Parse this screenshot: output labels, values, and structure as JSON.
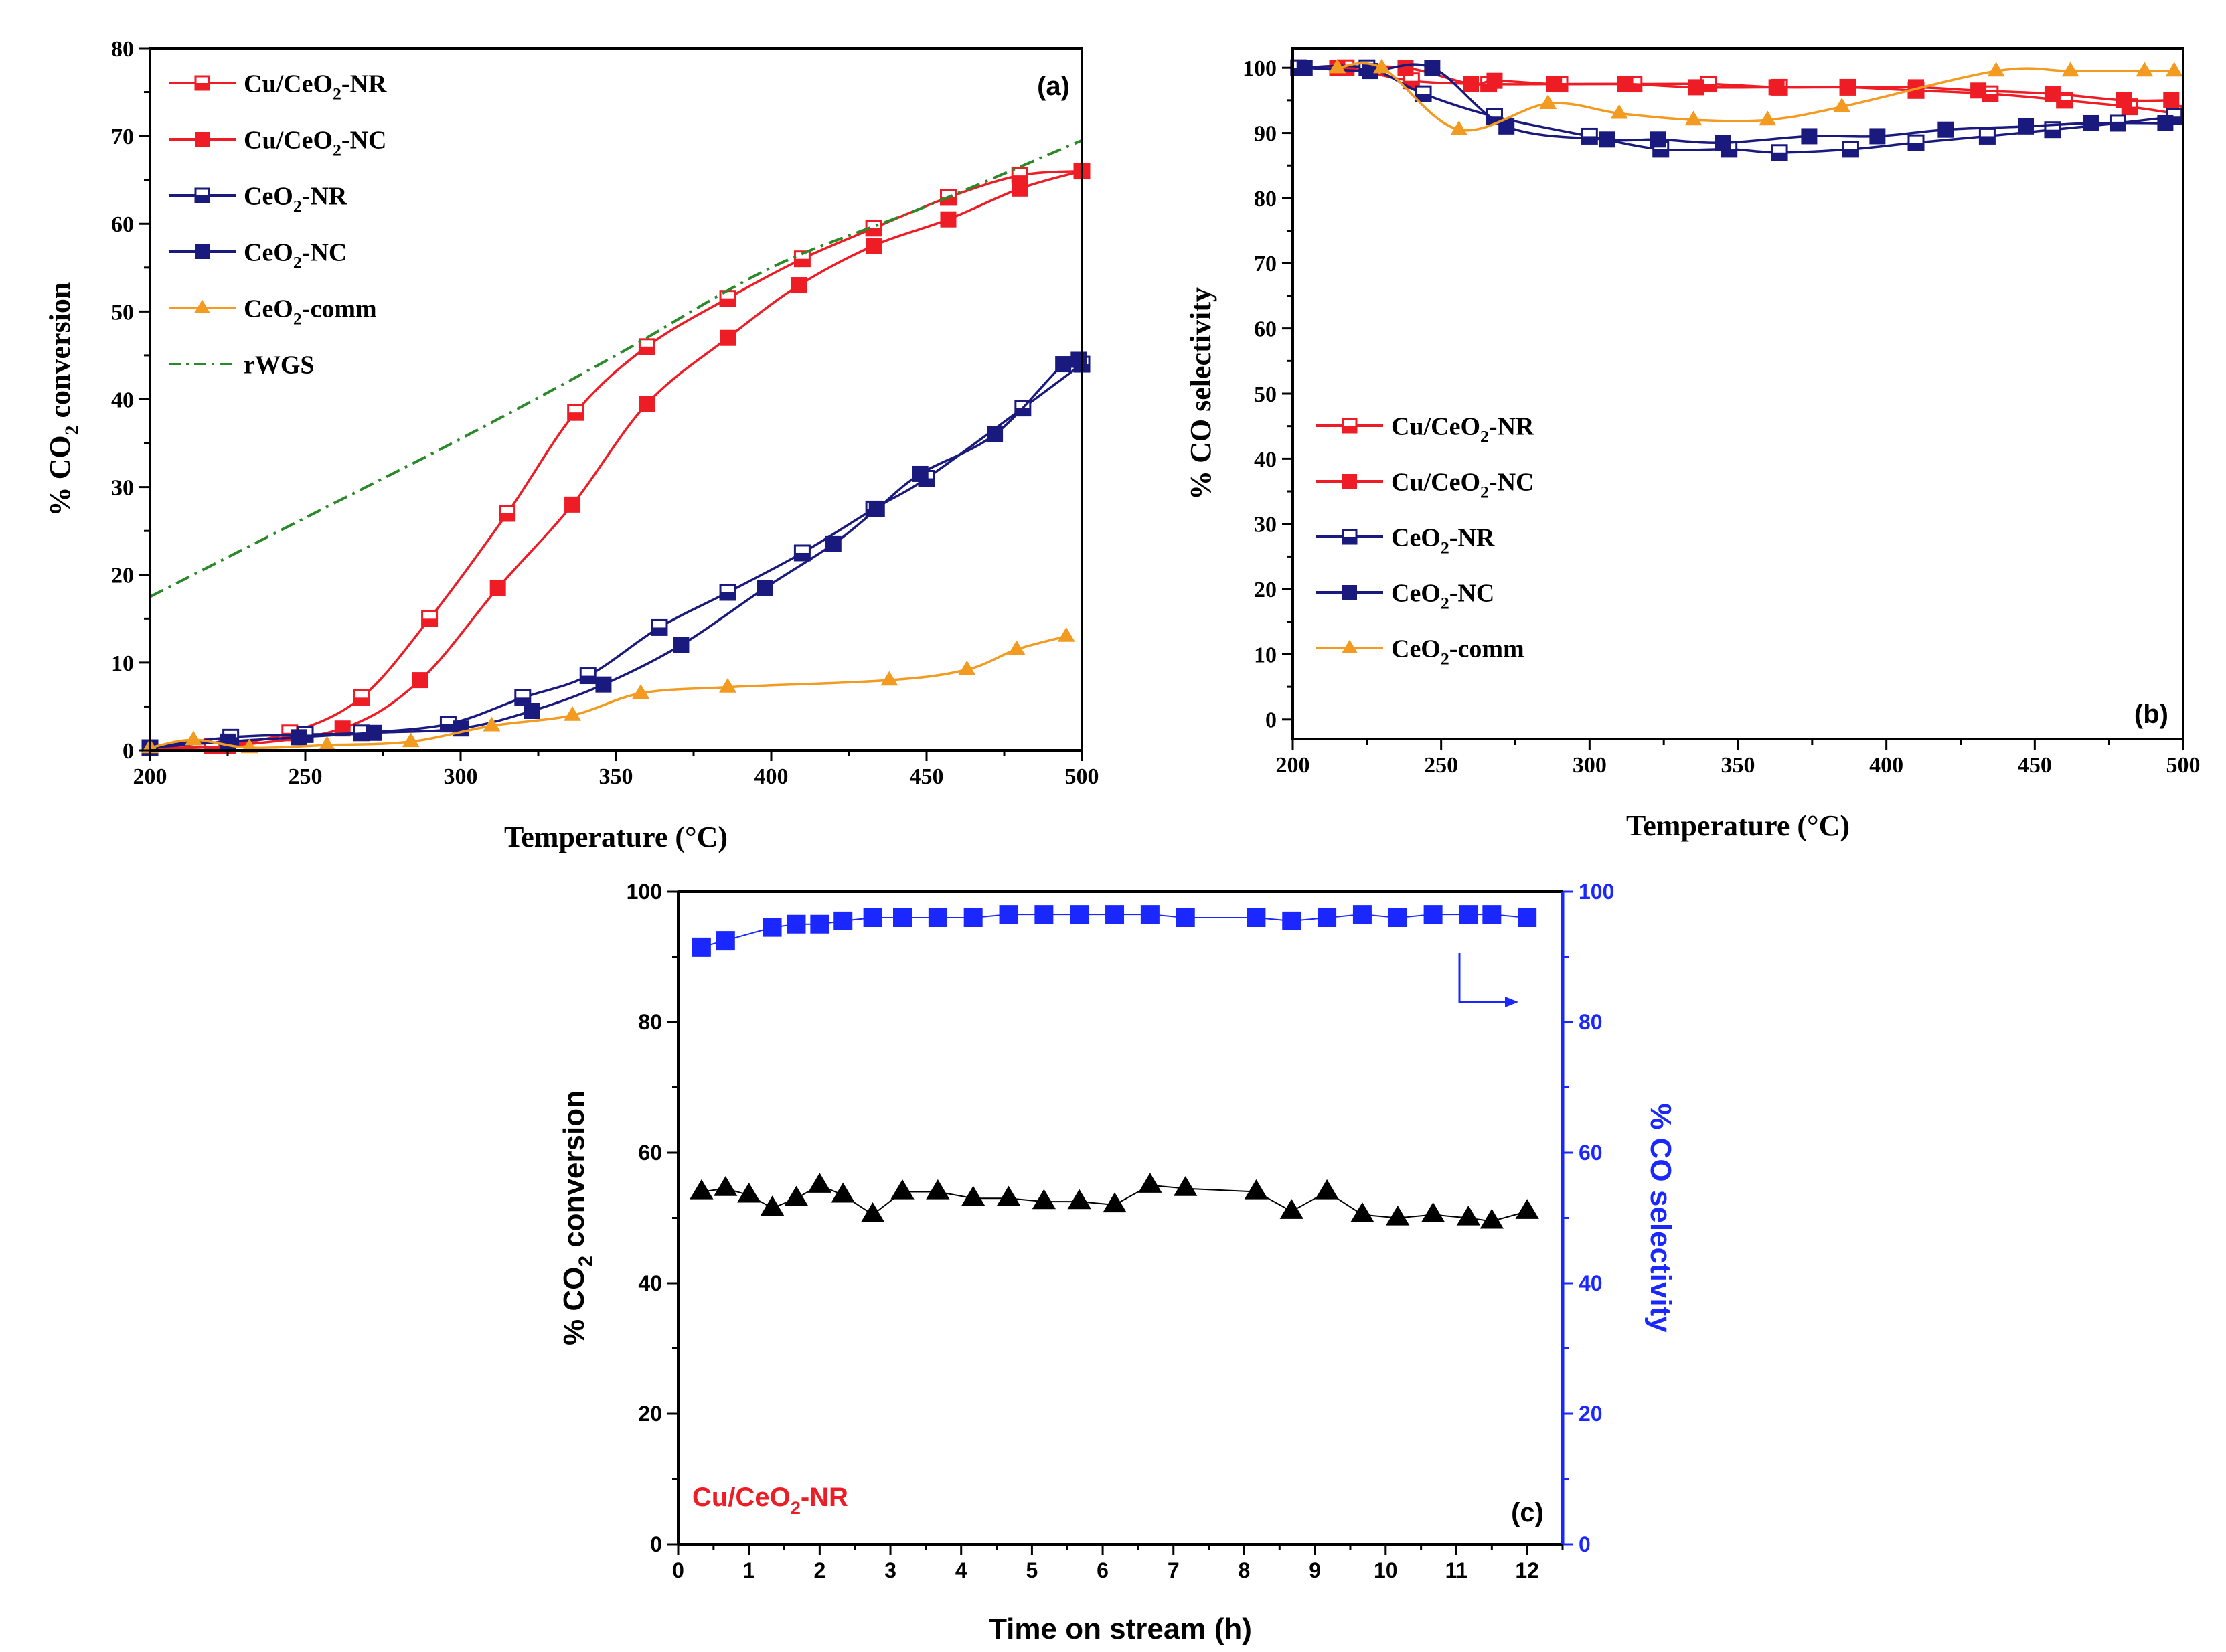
{
  "colors": {
    "red": "#ee1c25",
    "navy": "#1a1a7e",
    "orange": "#f39a20",
    "green": "#2a8a2a",
    "blue": "#1a28ff",
    "black": "#000000"
  },
  "chart_data": [
    {
      "id": "a",
      "type": "line",
      "panel_label": "(a)",
      "xlabel": "Temperature (°C)",
      "ylabel": "% CO2 conversion",
      "xlim": [
        200,
        500
      ],
      "ylim": [
        0,
        80
      ],
      "xticks": [
        200,
        250,
        300,
        350,
        400,
        450,
        500
      ],
      "yticks": [
        0,
        10,
        20,
        30,
        40,
        50,
        60,
        70,
        80
      ],
      "legend_position": "top-left",
      "series": [
        {
          "name": "Cu/CeO2-NR",
          "legend": [
            "Cu/CeO",
            "2",
            "-NR"
          ],
          "color": "red",
          "marker": "square-open",
          "x": [
            200,
            220,
            245,
            268,
            290,
            315,
            337,
            360,
            386,
            410,
            433,
            457,
            480,
            500
          ],
          "y": [
            0.3,
            0.5,
            2,
            6,
            15,
            27,
            38.5,
            46,
            51.5,
            56,
            59.5,
            63,
            65.5,
            66
          ]
        },
        {
          "name": "Cu/CeO2-NC",
          "legend": [
            "Cu/CeO",
            "2",
            "-NC"
          ],
          "color": "red",
          "marker": "square",
          "x": [
            200,
            225,
            262,
            287,
            312,
            336,
            360,
            386,
            409,
            433,
            457,
            480,
            500
          ],
          "y": [
            0.3,
            0.5,
            2.5,
            8,
            18.5,
            28,
            39.5,
            47,
            53,
            57.5,
            60.5,
            64,
            66
          ]
        },
        {
          "name": "CeO2-NR",
          "legend": [
            "CeO",
            "2",
            "-NR"
          ],
          "color": "navy",
          "marker": "square-open",
          "x": [
            200,
            226,
            250,
            268,
            296,
            320,
            341,
            364,
            386,
            410,
            433,
            450,
            481,
            500
          ],
          "y": [
            0.3,
            1.5,
            1.8,
            2,
            3,
            6,
            8.5,
            14,
            18,
            22.5,
            27.5,
            31,
            39,
            44
          ]
        },
        {
          "name": "CeO2-NC",
          "legend": [
            "CeO",
            "2",
            "-NC"
          ],
          "color": "navy",
          "marker": "square",
          "x": [
            200,
            225,
            248,
            272,
            300,
            323,
            346,
            371,
            398,
            420,
            434,
            448,
            472,
            494,
            499
          ],
          "y": [
            0.3,
            1,
            1.5,
            2,
            2.5,
            4.5,
            7.5,
            12,
            18.5,
            23.5,
            27.5,
            31.5,
            36,
            44,
            44.5
          ]
        },
        {
          "name": "CeO2-comm",
          "legend": [
            "CeO",
            "2",
            "-comm"
          ],
          "color": "orange",
          "marker": "triangle",
          "x": [
            200,
            214,
            232,
            257,
            284,
            310,
            336,
            358,
            386,
            438,
            463,
            479,
            495
          ],
          "y": [
            0.3,
            1.2,
            0.3,
            0.6,
            1,
            2.8,
            4,
            6.5,
            7.2,
            8,
            9.2,
            11.5,
            13
          ]
        },
        {
          "name": "rWGS",
          "legend": [
            "rWGS",
            "",
            ""
          ],
          "color": "green",
          "marker": "none",
          "dash": "dashdot",
          "x": [
            200,
            250,
            300,
            350,
            400,
            450,
            500
          ],
          "y": [
            17.5,
            26.5,
            35.5,
            45,
            55,
            62,
            69.5
          ]
        }
      ]
    },
    {
      "id": "b",
      "type": "line",
      "panel_label": "(b)",
      "xlabel": "Temperature (°C)",
      "ylabel": "% CO selectivity",
      "xlim": [
        200,
        500
      ],
      "ylim": [
        0,
        100
      ],
      "xticks": [
        200,
        250,
        300,
        350,
        400,
        450,
        500
      ],
      "yticks": [
        0,
        10,
        20,
        30,
        40,
        50,
        60,
        70,
        80,
        90,
        100
      ],
      "legend_position": "center-left",
      "series": [
        {
          "name": "Cu/CeO2-NR",
          "legend": [
            "Cu/CeO",
            "2",
            "-NR"
          ],
          "color": "red",
          "marker": "square-open",
          "x": [
            202,
            218,
            240,
            266,
            290,
            315,
            340,
            364,
            387,
            410,
            435,
            460,
            482,
            497
          ],
          "y": [
            100,
            100,
            98,
            97.5,
            97.5,
            97.5,
            97.5,
            97,
            97,
            96.5,
            96,
            95,
            94,
            93
          ]
        },
        {
          "name": "Cu/CeO2-NC",
          "legend": [
            "Cu/CeO",
            "2",
            "-NC"
          ],
          "color": "red",
          "marker": "square",
          "x": [
            202,
            215,
            238,
            260,
            268,
            288,
            312,
            336,
            363,
            387,
            410,
            431,
            456,
            480,
            496
          ],
          "y": [
            100,
            100,
            100,
            97.5,
            98,
            97.5,
            97.5,
            97,
            97,
            97,
            97,
            96.5,
            96,
            95,
            95
          ]
        },
        {
          "name": "CeO2-NR",
          "legend": [
            "CeO",
            "2",
            "-NR"
          ],
          "color": "navy",
          "marker": "square-open",
          "x": [
            202,
            225,
            244,
            268,
            300,
            324,
            347,
            364,
            388,
            410,
            434,
            456,
            478,
            497
          ],
          "y": [
            100,
            100,
            96,
            92.5,
            89.5,
            87.5,
            87.5,
            87,
            87.5,
            88.5,
            89.5,
            90.5,
            91.5,
            92.5
          ]
        },
        {
          "name": "CeO2-NC",
          "legend": [
            "CeO",
            "2",
            "-NC"
          ],
          "color": "navy",
          "marker": "square",
          "x": [
            204,
            226,
            247,
            272,
            306,
            323,
            345,
            374,
            397,
            420,
            447,
            469,
            494
          ],
          "y": [
            100,
            99.5,
            100,
            91,
            89,
            89,
            88.5,
            89.5,
            89.5,
            90.5,
            91,
            91.5,
            91.5
          ]
        },
        {
          "name": "CeO2-comm",
          "legend": [
            "CeO",
            "2",
            "-comm"
          ],
          "color": "orange",
          "marker": "triangle",
          "x": [
            215,
            230,
            256,
            286,
            310,
            335,
            360,
            385,
            437,
            462,
            487,
            497
          ],
          "y": [
            100,
            100,
            90.5,
            94.5,
            93,
            92,
            92,
            94,
            99.5,
            99.5,
            99.5,
            99.5
          ]
        }
      ]
    },
    {
      "id": "c",
      "type": "scatter",
      "panel_label": "(c)",
      "sample_label": "Cu/CeO2-NR",
      "sample_label_parts": [
        "Cu/CeO",
        "2",
        "-NR"
      ],
      "xlabel": "Time on stream (h)",
      "ylabel": "% CO2 conversion",
      "y2label": "% CO selectivity",
      "xlim": [
        0,
        12.5
      ],
      "ylim": [
        0,
        100
      ],
      "y2lim": [
        0,
        100
      ],
      "xticks": [
        0,
        1,
        2,
        3,
        4,
        5,
        6,
        7,
        8,
        9,
        10,
        11,
        12
      ],
      "yticks": [
        0,
        20,
        40,
        60,
        80,
        100
      ],
      "y2ticks": [
        0,
        20,
        40,
        60,
        80,
        100
      ],
      "series": [
        {
          "name": "CO2 conversion",
          "axis": "left",
          "color": "black",
          "marker": "triangle",
          "connect": true,
          "x": [
            0.33,
            0.67,
            1.0,
            1.33,
            1.67,
            2.0,
            2.33,
            2.75,
            3.17,
            3.67,
            4.17,
            4.67,
            5.17,
            5.67,
            6.17,
            6.67,
            7.17,
            8.17,
            8.67,
            9.17,
            9.67,
            10.17,
            10.67,
            11.17,
            11.5,
            12.0
          ],
          "y": [
            54,
            54.5,
            53.5,
            51.5,
            53,
            55,
            53.5,
            50.5,
            54,
            54,
            53,
            53,
            52.5,
            52.5,
            52,
            55,
            54.5,
            54,
            51,
            54,
            50.5,
            50,
            50.5,
            50,
            49.5,
            51
          ]
        },
        {
          "name": "CO selectivity",
          "axis": "right",
          "color": "blue",
          "marker": "square",
          "connect": true,
          "x": [
            0.33,
            0.67,
            1.33,
            1.67,
            2.0,
            2.33,
            2.75,
            3.17,
            3.67,
            4.17,
            4.67,
            5.17,
            5.67,
            6.17,
            6.67,
            7.17,
            8.17,
            8.67,
            9.17,
            9.67,
            10.17,
            10.67,
            11.17,
            11.5,
            12.0
          ],
          "y": [
            91.5,
            92.5,
            94.5,
            95,
            95,
            95.5,
            96,
            96,
            96,
            96,
            96.5,
            96.5,
            96.5,
            96.5,
            96.5,
            96,
            96,
            95.5,
            96,
            96.5,
            96,
            96.5,
            96.5,
            96.5,
            96
          ]
        }
      ]
    }
  ]
}
